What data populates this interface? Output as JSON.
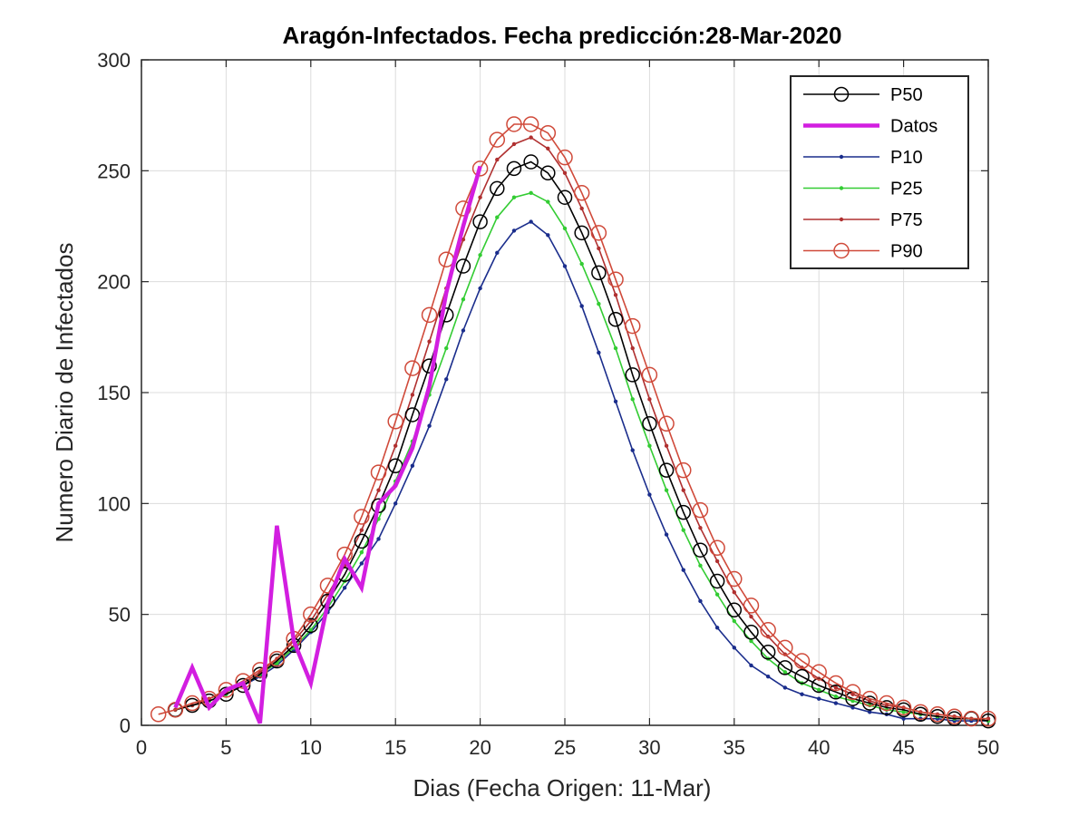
{
  "chart_data": {
    "type": "line",
    "title": "Aragón-Infectados. Fecha predicción:28-Mar-2020",
    "xlabel": "Dias (Fecha Origen: 11-Mar)",
    "ylabel": "Numero Diario de Infectados",
    "xlim": [
      0,
      50
    ],
    "ylim": [
      0,
      300
    ],
    "xticks": [
      0,
      5,
      10,
      15,
      20,
      25,
      30,
      35,
      40,
      45,
      50
    ],
    "yticks": [
      0,
      50,
      100,
      150,
      200,
      250,
      300
    ],
    "grid": true,
    "legend_position": "top-right",
    "legend": [
      "P50",
      "Datos",
      "P10",
      "P25",
      "P75",
      "P90"
    ],
    "series": [
      {
        "name": "P50",
        "color": "#000000",
        "marker": "circle",
        "x": [
          2,
          3,
          4,
          5,
          6,
          7,
          8,
          9,
          10,
          11,
          12,
          13,
          14,
          15,
          16,
          17,
          18,
          19,
          20,
          21,
          22,
          23,
          24,
          25,
          26,
          27,
          28,
          29,
          30,
          31,
          32,
          33,
          34,
          35,
          36,
          37,
          38,
          39,
          40,
          41,
          42,
          43,
          44,
          45,
          46,
          47,
          48,
          49,
          50
        ],
        "y": [
          7,
          9,
          11,
          14,
          18,
          23,
          29,
          36,
          45,
          56,
          68,
          83,
          99,
          117,
          140,
          162,
          185,
          207,
          227,
          242,
          251,
          254,
          249,
          238,
          222,
          204,
          183,
          158,
          136,
          115,
          96,
          79,
          65,
          52,
          42,
          33,
          26,
          22,
          18,
          15,
          12,
          10,
          8,
          7,
          5,
          4,
          3,
          3,
          2
        ]
      },
      {
        "name": "Datos",
        "color": "#d21ee0",
        "marker": "none",
        "x": [
          2,
          3,
          4,
          5,
          6,
          7,
          8,
          9,
          10,
          11,
          12,
          13,
          14,
          15,
          16,
          17,
          18,
          19,
          20
        ],
        "y": [
          8,
          26,
          8,
          16,
          19,
          1,
          90,
          38,
          19,
          55,
          75,
          62,
          100,
          108,
          125,
          153,
          195,
          225,
          252
        ]
      },
      {
        "name": "P10",
        "color": "#1a2d8c",
        "marker": "dot",
        "x": [
          2,
          3,
          4,
          5,
          6,
          7,
          8,
          9,
          10,
          11,
          12,
          13,
          14,
          15,
          16,
          17,
          18,
          19,
          20,
          21,
          22,
          23,
          24,
          25,
          26,
          27,
          28,
          29,
          30,
          31,
          32,
          33,
          34,
          35,
          36,
          37,
          38,
          39,
          40,
          41,
          42,
          43,
          44,
          45,
          46,
          47,
          48,
          49,
          50
        ],
        "y": [
          7,
          9,
          11,
          14,
          18,
          22,
          27,
          34,
          42,
          51,
          62,
          73,
          84,
          100,
          117,
          135,
          156,
          178,
          197,
          213,
          223,
          227,
          221,
          207,
          189,
          168,
          146,
          124,
          104,
          86,
          70,
          56,
          44,
          35,
          27,
          22,
          17,
          14,
          12,
          10,
          8,
          6,
          5,
          3,
          3,
          3,
          2,
          2,
          2
        ]
      },
      {
        "name": "P25",
        "color": "#33cc33",
        "marker": "dot",
        "x": [
          2,
          3,
          4,
          5,
          6,
          7,
          8,
          9,
          10,
          11,
          12,
          13,
          14,
          15,
          16,
          17,
          18,
          19,
          20,
          21,
          22,
          23,
          24,
          25,
          26,
          27,
          28,
          29,
          30,
          31,
          32,
          33,
          34,
          35,
          36,
          37,
          38,
          39,
          40,
          41,
          42,
          43,
          44,
          45,
          46,
          47,
          48,
          49,
          50
        ],
        "y": [
          7,
          9,
          11,
          14,
          18,
          23,
          28,
          35,
          43,
          53,
          65,
          78,
          93,
          110,
          128,
          149,
          170,
          192,
          212,
          229,
          238,
          240,
          236,
          224,
          208,
          190,
          170,
          147,
          126,
          106,
          88,
          72,
          59,
          47,
          38,
          30,
          24,
          19,
          16,
          13,
          11,
          9,
          7,
          6,
          5,
          4,
          3,
          3,
          2
        ]
      },
      {
        "name": "P75",
        "color": "#b03030",
        "marker": "dot",
        "x": [
          2,
          3,
          4,
          5,
          6,
          7,
          8,
          9,
          10,
          11,
          12,
          13,
          14,
          15,
          16,
          17,
          18,
          19,
          20,
          21,
          22,
          23,
          24,
          25,
          26,
          27,
          28,
          29,
          30,
          31,
          32,
          33,
          34,
          35,
          36,
          37,
          38,
          39,
          40,
          41,
          42,
          43,
          44,
          45,
          46,
          47,
          48,
          49,
          50
        ],
        "y": [
          7,
          9,
          12,
          15,
          19,
          24,
          30,
          38,
          47,
          59,
          72,
          88,
          106,
          126,
          149,
          173,
          197,
          219,
          238,
          255,
          262,
          265,
          260,
          249,
          233,
          215,
          194,
          170,
          147,
          126,
          106,
          89,
          74,
          60,
          49,
          40,
          32,
          26,
          21,
          17,
          14,
          11,
          9,
          8,
          6,
          5,
          4,
          3,
          3
        ]
      },
      {
        "name": "P90",
        "color": "#d04a3a",
        "marker": "circle",
        "x": [
          1,
          2,
          3,
          4,
          5,
          6,
          7,
          8,
          9,
          10,
          11,
          12,
          13,
          14,
          15,
          16,
          17,
          18,
          19,
          20,
          21,
          22,
          23,
          24,
          25,
          26,
          27,
          28,
          29,
          30,
          31,
          32,
          33,
          34,
          35,
          36,
          37,
          38,
          39,
          40,
          41,
          42,
          43,
          44,
          45,
          46,
          47,
          48,
          49,
          50
        ],
        "y": [
          5,
          7,
          10,
          12,
          16,
          20,
          25,
          30,
          39,
          50,
          63,
          77,
          94,
          114,
          137,
          161,
          185,
          210,
          233,
          251,
          264,
          271,
          271,
          267,
          256,
          240,
          222,
          201,
          180,
          158,
          136,
          115,
          97,
          80,
          66,
          54,
          43,
          35,
          29,
          24,
          19,
          15,
          12,
          10,
          8,
          6,
          5,
          4,
          3,
          3
        ]
      }
    ]
  }
}
